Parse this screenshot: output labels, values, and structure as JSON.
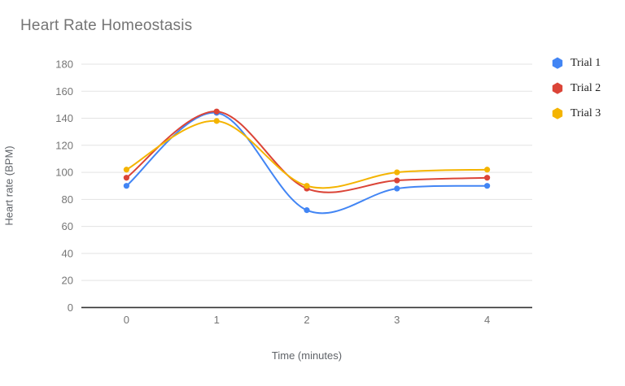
{
  "title": "Heart Rate Homeostasis",
  "colors": {
    "title_text": "#757575",
    "tick_text": "#757575",
    "axis_title_text": "#5f6368",
    "gridline": "#e3e3e3",
    "baseline": "#333333",
    "background": "#ffffff",
    "series_blue": "#4285f4",
    "series_red": "#db4437",
    "series_yellow": "#f4b400"
  },
  "chart_data": {
    "type": "line",
    "smooth": true,
    "title": "Heart Rate Homeostasis",
    "xlabel": "Time (minutes)",
    "ylabel": "Heart rate (BPM)",
    "categories": [
      "0",
      "1",
      "2",
      "3",
      "4"
    ],
    "x": [
      0,
      1,
      2,
      3,
      4
    ],
    "y_ticks": [
      0,
      20,
      40,
      60,
      80,
      100,
      120,
      140,
      160,
      180
    ],
    "ylim": [
      0,
      180
    ],
    "grid": true,
    "legend_position": "right",
    "series": [
      {
        "name": "Trial 1",
        "color": "#4285f4",
        "values": [
          90,
          144,
          72,
          88,
          90
        ]
      },
      {
        "name": "Trial 2",
        "color": "#db4437",
        "values": [
          96,
          145,
          88,
          94,
          96
        ]
      },
      {
        "name": "Trial 3",
        "color": "#f4b400",
        "values": [
          102,
          138,
          90,
          100,
          102
        ]
      }
    ]
  }
}
